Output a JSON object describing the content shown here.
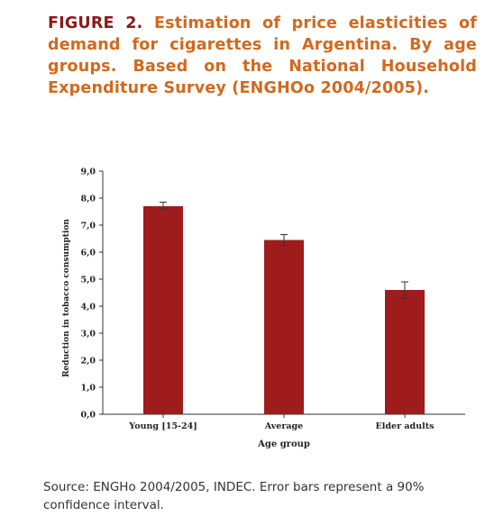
{
  "figure": {
    "label": "FIGURE 2.",
    "title": "Estimation of price elasticities of demand for cigarettes in Argentina. By age groups. Based on the National Household Expenditure Survey (ENGHOo 2004/2005)."
  },
  "source_note": "Source: ENGHo 2004/2005, INDEC. Error bars represent a 90% confidence interval.",
  "colors": {
    "bar": "#9e1c1c",
    "title_label": "#8b1a1a",
    "title_text": "#d2691e"
  },
  "chart_data": {
    "type": "bar",
    "categories": [
      "Young [15-24]",
      "Average",
      "Elder adults"
    ],
    "values": [
      7.7,
      6.45,
      4.6
    ],
    "error_low": [
      7.6,
      6.25,
      4.3
    ],
    "error_high": [
      7.85,
      6.65,
      4.9
    ],
    "xlabel": "Age group",
    "ylabel": "Reduction in tobacco consumption",
    "ylim": [
      0,
      9
    ],
    "yticks": [
      "0,0",
      "1,0",
      "2,0",
      "3,0",
      "4,0",
      "5,0",
      "6,0",
      "7,0",
      "8,0",
      "9,0"
    ],
    "grid": false,
    "legend": "none"
  }
}
